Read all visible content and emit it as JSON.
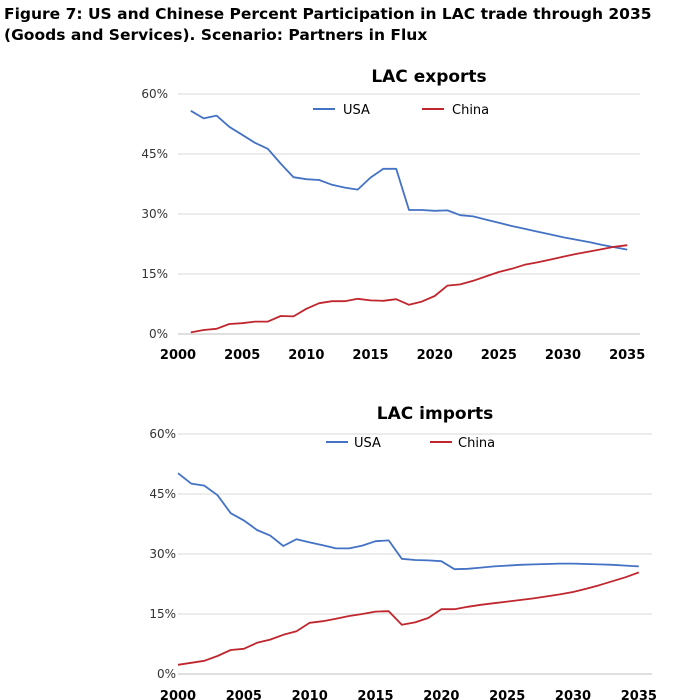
{
  "figure": {
    "title": "Figure 7: US and Chinese Percent Participation in LAC trade through 2035 (Goods and Services). Scenario: Partners in Flux"
  },
  "chart_data": [
    {
      "type": "line",
      "title": "LAC exports",
      "xlabel": "",
      "ylabel": "",
      "xlim": [
        2000,
        2036
      ],
      "ylim": [
        0,
        60
      ],
      "xticks": [
        2000,
        2005,
        2010,
        2015,
        2020,
        2025,
        2030,
        2035
      ],
      "yticks": [
        0,
        15,
        30,
        45,
        60
      ],
      "ytick_labels": [
        "0%",
        "15%",
        "30%",
        "45%",
        "60%"
      ],
      "grid": "horizontal",
      "legend": "top-center",
      "x": [
        2001,
        2002,
        2003,
        2004,
        2005,
        2006,
        2007,
        2008,
        2009,
        2010,
        2011,
        2012,
        2013,
        2014,
        2015,
        2016,
        2017,
        2018,
        2019,
        2020,
        2021,
        2022,
        2023,
        2024,
        2025,
        2026,
        2027,
        2028,
        2029,
        2030,
        2031,
        2032,
        2033,
        2034,
        2035
      ],
      "series": [
        {
          "name": "USA",
          "color": "#4472c4",
          "values": [
            55.8,
            53.9,
            54.6,
            51.8,
            49.8,
            47.8,
            46.3,
            42.6,
            39.2,
            38.7,
            38.5,
            37.3,
            36.6,
            36.1,
            39.1,
            41.3,
            41.3,
            31.0,
            31.0,
            30.8,
            30.9,
            29.7,
            29.4,
            28.6,
            27.8,
            27.0,
            26.3,
            25.6,
            24.9,
            24.2,
            23.6,
            23.0,
            22.3,
            21.7,
            21.1
          ]
        },
        {
          "name": "China",
          "color": "#c0262d",
          "values": [
            0.4,
            1.0,
            1.3,
            2.5,
            2.7,
            3.1,
            3.1,
            4.5,
            4.4,
            6.3,
            7.7,
            8.2,
            8.2,
            8.8,
            8.4,
            8.3,
            8.7,
            7.3,
            8.1,
            9.5,
            12.1,
            12.4,
            13.3,
            14.4,
            15.5,
            16.3,
            17.3,
            17.9,
            18.6,
            19.3,
            20.0,
            20.6,
            21.2,
            21.8,
            22.2
          ]
        }
      ]
    },
    {
      "type": "line",
      "title": "LAC imports",
      "xlabel": "",
      "ylabel": "",
      "xlim": [
        2000,
        2036
      ],
      "ylim": [
        0,
        60
      ],
      "xticks": [
        2000,
        2005,
        2010,
        2015,
        2020,
        2025,
        2030,
        2035
      ],
      "yticks": [
        0,
        15,
        30,
        45,
        60
      ],
      "ytick_labels": [
        "0%",
        "15%",
        "30%",
        "45%",
        "60%"
      ],
      "grid": "horizontal",
      "legend": "top-center",
      "x": [
        2000,
        2001,
        2002,
        2003,
        2004,
        2005,
        2006,
        2007,
        2008,
        2009,
        2010,
        2011,
        2012,
        2013,
        2014,
        2015,
        2016,
        2017,
        2018,
        2019,
        2020,
        2021,
        2022,
        2023,
        2024,
        2025,
        2026,
        2027,
        2028,
        2029,
        2030,
        2031,
        2032,
        2033,
        2034,
        2035
      ],
      "series": [
        {
          "name": "USA",
          "color": "#4472c4",
          "values": [
            50.2,
            47.6,
            47.1,
            44.7,
            40.2,
            38.4,
            36.0,
            34.6,
            32.0,
            33.7,
            32.9,
            32.2,
            31.4,
            31.4,
            32.1,
            33.2,
            33.4,
            28.8,
            28.5,
            28.4,
            28.2,
            26.2,
            26.3,
            26.6,
            26.9,
            27.1,
            27.3,
            27.4,
            27.5,
            27.6,
            27.6,
            27.5,
            27.4,
            27.3,
            27.1,
            26.9
          ]
        },
        {
          "name": "China",
          "color": "#c0262d",
          "values": [
            2.3,
            2.8,
            3.3,
            4.5,
            6.0,
            6.3,
            7.8,
            8.6,
            9.8,
            10.7,
            12.8,
            13.2,
            13.8,
            14.5,
            15.0,
            15.6,
            15.7,
            12.3,
            12.9,
            14.0,
            16.2,
            16.2,
            16.8,
            17.3,
            17.7,
            18.1,
            18.5,
            18.9,
            19.4,
            19.9,
            20.5,
            21.3,
            22.2,
            23.2,
            24.2,
            25.4
          ]
        }
      ]
    }
  ]
}
